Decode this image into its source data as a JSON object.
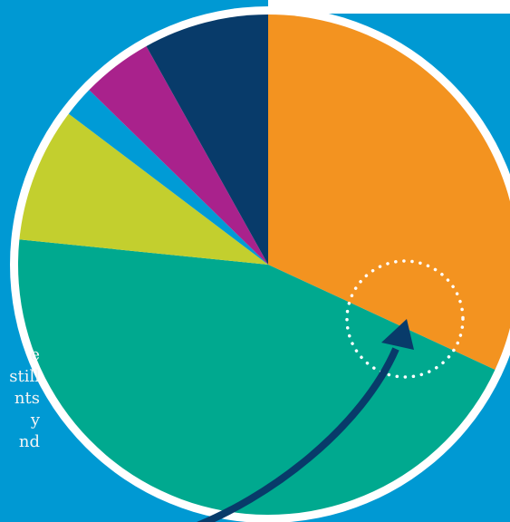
{
  "colors": {
    "background_panel": "#0099d3",
    "border": "#ffffff",
    "arrow": "#083b6a",
    "marker": "#ffffff"
  },
  "side_text": [
    {
      "text": "e"
    },
    {
      "text": "still"
    },
    {
      "text": "nts"
    },
    {
      "text": "y"
    },
    {
      "text": "nd"
    }
  ],
  "chart_data": {
    "type": "pie",
    "start_angle_deg": 0,
    "direction": "clockwise",
    "slices": [
      {
        "label": "",
        "value": 31.9,
        "color": "#f39320"
      },
      {
        "label": "",
        "value": 44.7,
        "color": "#00a98f"
      },
      {
        "label": "",
        "value": 8.7,
        "color": "#c3cf2e"
      },
      {
        "label": "",
        "value": 2.0,
        "color": "#009bd6"
      },
      {
        "label": "",
        "value": 4.6,
        "color": "#a9228c"
      },
      {
        "label": "",
        "value": 8.1,
        "color": "#083b6a"
      }
    ],
    "annotation": {
      "type": "dotted-circle-with-arrow"
    }
  }
}
